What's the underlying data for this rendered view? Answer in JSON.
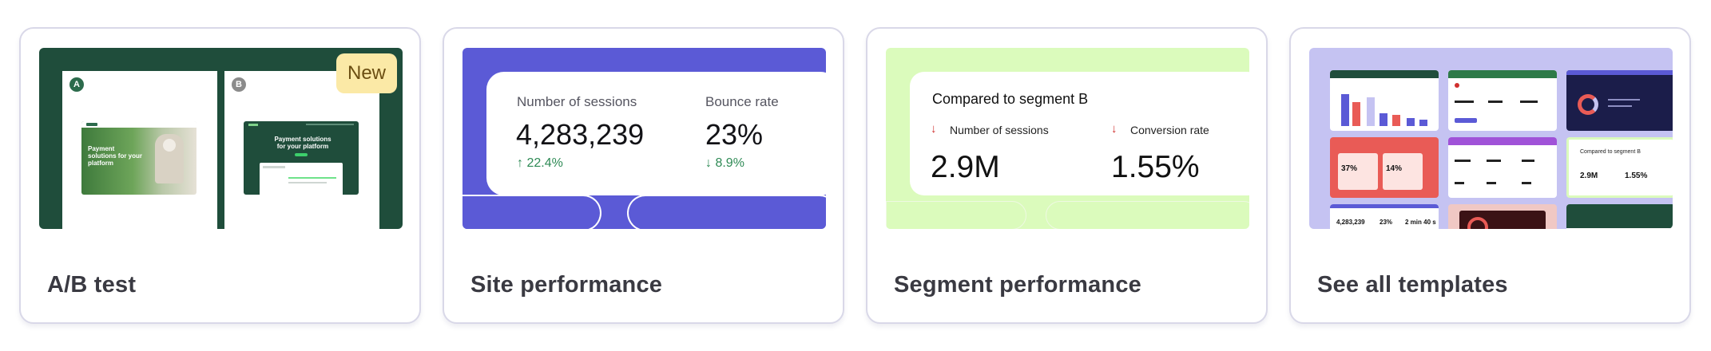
{
  "cards": [
    {
      "title": "A/B test",
      "thumbnail": {
        "badge": "New",
        "variant_a": "A",
        "variant_b": "B",
        "hero_text_a": "Payment solutions for your platform",
        "hero_text_b": "Payment solutions for your platform"
      }
    },
    {
      "title": "Site performance",
      "thumbnail": {
        "metrics": [
          {
            "label": "Number of sessions",
            "value": "4,283,239",
            "delta": "22.4%",
            "direction": "up"
          },
          {
            "label": "Bounce rate",
            "value": "23%",
            "delta": "8.9%",
            "direction": "down"
          }
        ]
      }
    },
    {
      "title": "Segment performance",
      "thumbnail": {
        "heading": "Compared to segment B",
        "metrics": [
          {
            "label": "Number of sessions",
            "value": "2.9M",
            "direction": "down"
          },
          {
            "label": "Conversion rate",
            "value": "1.55%",
            "direction": "down"
          }
        ]
      }
    },
    {
      "title": "See all templates",
      "thumbnail": {
        "mini_texts": {
          "sessions_value": "4,283,239",
          "bounce_value": "23%",
          "duration_value": "2 min 40 s",
          "percent_1": "37%",
          "percent_2": "14%",
          "compare_heading": "Compared to segment B",
          "compare_value_1": "2.9M",
          "compare_value_2": "1.55%"
        }
      }
    }
  ],
  "colors": {
    "ab_bg": "#1f4d3b",
    "site_bg": "#5b5ad6",
    "segment_bg": "#dbfbbc",
    "templates_bg": "#c5c3f2",
    "delta_positive": "#2e8a55",
    "delta_negative": "#d0302f",
    "badge_bg": "#fbe9a6"
  },
  "icons": {
    "up": "arrow-up-icon",
    "down": "arrow-down-icon"
  }
}
